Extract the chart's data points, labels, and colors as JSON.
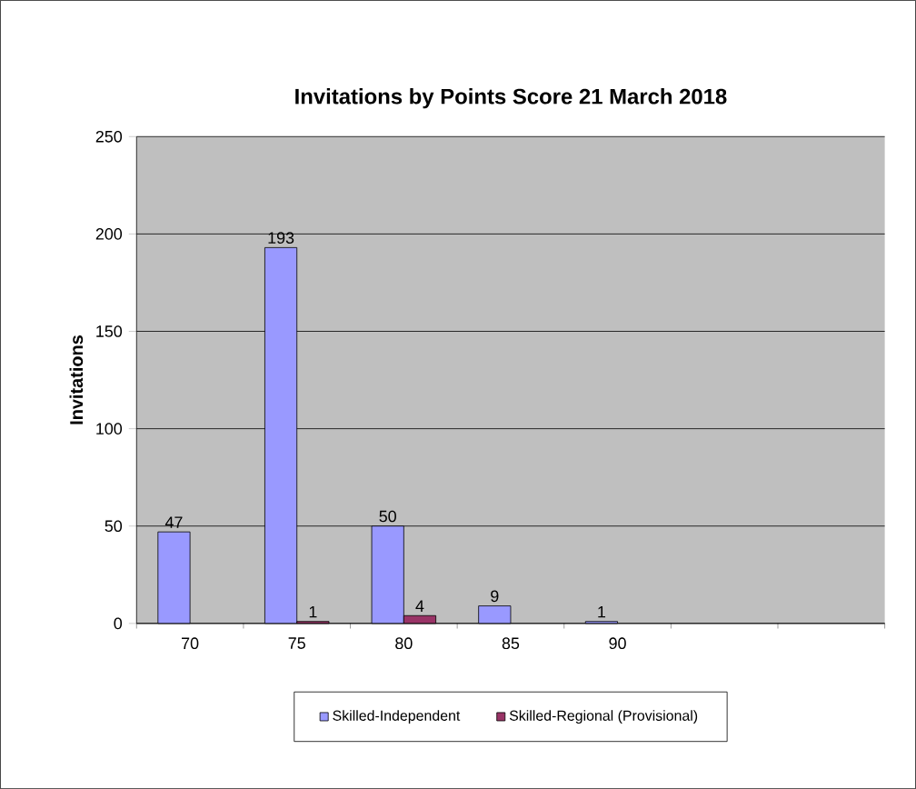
{
  "chart_data": {
    "type": "bar",
    "title": "Invitations by Points Score 21 March 2018",
    "ylabel": "Invitations",
    "categories": [
      "70",
      "75",
      "80",
      "85",
      "90",
      null,
      null
    ],
    "series": [
      {
        "name": "Skilled-Independent",
        "color": "#9999ff",
        "values": [
          47,
          193,
          50,
          9,
          1,
          null,
          null
        ]
      },
      {
        "name": "Skilled-Regional (Provisional)",
        "color": "#993366",
        "values": [
          null,
          1,
          4,
          null,
          null,
          null,
          null
        ]
      }
    ],
    "ylim": [
      0,
      250
    ],
    "yticks": [
      0,
      50,
      100,
      150,
      200,
      250
    ],
    "grid": "y",
    "legend": "bottom",
    "data_labels": true
  }
}
